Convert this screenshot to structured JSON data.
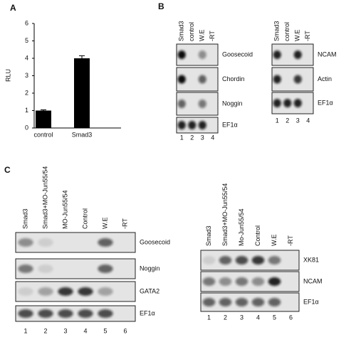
{
  "chart_data": {
    "type": "bar",
    "panel_label": "A",
    "ylabel": "RLU",
    "categories": [
      "control",
      "Smad3"
    ],
    "values": [
      1.0,
      4.0
    ],
    "errors": [
      0.04,
      0.15
    ],
    "color": "#000000",
    "ylim": [
      0,
      6
    ],
    "yticks": [
      0,
      1,
      2,
      3,
      4,
      5,
      6
    ]
  },
  "panel_b": {
    "label": "B",
    "gels": [
      {
        "lanes": [
          "Smad3",
          "control",
          "W.E",
          "-RT"
        ],
        "rows": [
          "Goosecoid",
          "Chordin",
          "Noggin",
          "EF1α"
        ],
        "lane_numbers": [
          "1",
          "2",
          "3",
          "4"
        ]
      },
      {
        "lanes": [
          "Smad3",
          "control",
          "W.E",
          "-RT"
        ],
        "rows": [
          "NCAM",
          "Actin",
          "EF1α"
        ],
        "lane_numbers": [
          "1",
          "2",
          "3",
          "4"
        ]
      }
    ]
  },
  "panel_c": {
    "label": "C",
    "gels": [
      {
        "lanes": [
          "Smad3",
          "Smad3+MO-Jun55/54",
          "MO-Jun55/54",
          "Control",
          "W.E",
          "-RT"
        ],
        "rows": [
          "Goosecoid",
          "Noggin",
          "GATA2",
          "EF1α"
        ],
        "lane_numbers": [
          "1",
          "2",
          "3",
          "4",
          "5",
          "6"
        ]
      },
      {
        "lanes": [
          "Smad3",
          "Smad3+MO-Jun55/54",
          "Mo-Jun55/54",
          "Control",
          "W.E",
          "-RT"
        ],
        "rows": [
          "XK81",
          "NCAM",
          "EF1α"
        ],
        "lane_numbers": [
          "1",
          "2",
          "3",
          "4",
          "5",
          "6"
        ]
      }
    ]
  }
}
